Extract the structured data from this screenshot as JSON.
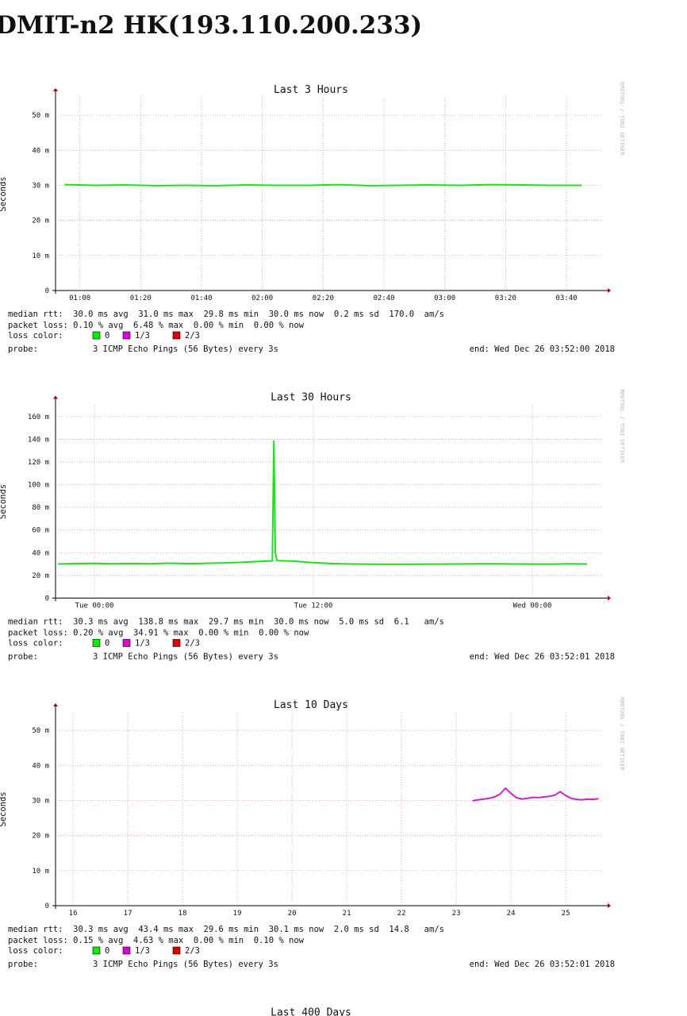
{
  "header": {
    "title": "DMIT-n2 HK(193.110.200.233)"
  },
  "chart_data": [
    {
      "type": "line",
      "title": "Last 3 Hours",
      "ylabel": "Seconds",
      "watermark": "RRDTOOL / TOBI OETIKER",
      "color": "#22dd22",
      "grid": true,
      "xlim": [
        "00:52",
        "03:52"
      ],
      "xticks": [
        "01:00",
        "01:20",
        "01:40",
        "02:00",
        "02:20",
        "02:40",
        "03:00",
        "03:20",
        "03:40"
      ],
      "ylim": [
        0,
        55
      ],
      "yticks": [
        0,
        {
          "value": 10,
          "label": "10 m"
        },
        {
          "value": 20,
          "label": "20 m"
        },
        {
          "value": 30,
          "label": "30 m"
        },
        {
          "value": 40,
          "label": "40 m"
        },
        {
          "value": 50,
          "label": "50 m"
        }
      ],
      "x": [
        "00:55",
        "01:05",
        "01:15",
        "01:25",
        "01:35",
        "01:45",
        "01:55",
        "02:05",
        "02:15",
        "02:25",
        "02:35",
        "02:45",
        "02:55",
        "03:05",
        "03:15",
        "03:25",
        "03:35",
        "03:45"
      ],
      "values": [
        30.2,
        30.0,
        30.1,
        29.9,
        30.0,
        29.9,
        30.1,
        30.0,
        30.0,
        30.2,
        29.9,
        30.0,
        30.1,
        30.0,
        30.2,
        30.1,
        30.0,
        30.0
      ],
      "stats": [
        "median rtt:  30.0 ms avg  31.0 ms max  29.8 ms min  30.0 ms now  0.2 ms sd  170.0  am/s",
        "packet loss: 0.10 % avg  6.48 % max  0.00 % min  0.00 % now"
      ],
      "loss_label": "loss color:",
      "loss_colors": [
        {
          "name": "0",
          "color": "#00ee00"
        },
        {
          "name": "1/3",
          "color": "#dd00dd"
        },
        {
          "name": "2/3",
          "color": "#dd0000"
        }
      ],
      "probe_label": "probe:",
      "probe": "3 ICMP Echo Pings (56 Bytes) every 3s",
      "end": "end: Wed Dec 26 03:52:00 2018"
    },
    {
      "type": "line",
      "title": "Last 30 Hours",
      "ylabel": "Seconds",
      "watermark": "RRDTOOL / TOBI OETIKER",
      "color": "#22dd22",
      "grid": true,
      "xlim": [
        "Mon 21:52",
        "Wed 03:52"
      ],
      "xticks": [
        "Tue 00:00",
        "Tue 12:00",
        "Wed 00:00"
      ],
      "ylim": [
        0,
        170
      ],
      "yticks": [
        0,
        {
          "value": 20,
          "label": "20 m"
        },
        {
          "value": 40,
          "label": "40 m"
        },
        {
          "value": 60,
          "label": "60 m"
        },
        {
          "value": 80,
          "label": "80 m"
        },
        {
          "value": 100,
          "label": "100 m"
        },
        {
          "value": 120,
          "label": "120 m"
        },
        {
          "value": 140,
          "label": "140 m"
        },
        {
          "value": 160,
          "label": "160 m"
        }
      ],
      "x": [
        "Mon 22:00",
        "Mon 23:00",
        "Tue 00:00",
        "Tue 01:00",
        "Tue 02:00",
        "Tue 03:00",
        "Tue 04:00",
        "Tue 05:00",
        "Tue 06:00",
        "Tue 07:00",
        "Tue 08:00",
        "Tue 09:00",
        "Tue 09:45",
        "Tue 09:50",
        "Tue 09:55",
        "Tue 10:00",
        "Tue 11:00",
        "Tue 12:00",
        "Tue 13:00",
        "Tue 14:00",
        "Tue 15:00",
        "Tue 16:00",
        "Tue 17:00",
        "Tue 18:00",
        "Tue 19:00",
        "Tue 20:00",
        "Tue 21:00",
        "Tue 22:00",
        "Tue 23:00",
        "Wed 00:00",
        "Wed 01:00",
        "Wed 02:00",
        "Wed 03:00"
      ],
      "values": [
        30.1,
        30.4,
        30.6,
        30.2,
        30.5,
        30.3,
        30.8,
        30.4,
        30.6,
        31.0,
        31.5,
        32.4,
        32.8,
        138.8,
        40.0,
        33.1,
        32.5,
        31.2,
        30.4,
        30.1,
        29.9,
        29.8,
        29.8,
        29.9,
        30.0,
        30.1,
        30.2,
        30.3,
        30.1,
        30.0,
        29.9,
        30.2,
        30.0
      ],
      "stats": [
        "median rtt:  30.3 ms avg  138.8 ms max  29.7 ms min  30.0 ms now  5.0 ms sd  6.1   am/s",
        "packet loss: 0.20 % avg  34.91 % max  0.00 % min  0.00 % now"
      ],
      "loss_label": "loss color:",
      "loss_colors": [
        {
          "name": "0",
          "color": "#00ee00"
        },
        {
          "name": "1/3",
          "color": "#dd00dd"
        },
        {
          "name": "2/3",
          "color": "#dd0000"
        }
      ],
      "probe_label": "probe:",
      "probe": "3 ICMP Echo Pings (56 Bytes) every 3s",
      "end": "end: Wed Dec 26 03:52:01 2018"
    },
    {
      "type": "line",
      "title": "Last 10 Days",
      "ylabel": "Seconds",
      "watermark": "RRDTOOL / TOBI OETIKER",
      "color": "#cc22cc",
      "grid": true,
      "xlim": [
        15.68,
        25.68
      ],
      "xticks": [
        16,
        17,
        18,
        19,
        20,
        21,
        22,
        23,
        24,
        25
      ],
      "ylim": [
        0,
        55
      ],
      "yticks": [
        0,
        {
          "value": 10,
          "label": "10 m"
        },
        {
          "value": 20,
          "label": "20 m"
        },
        {
          "value": 30,
          "label": "30 m"
        },
        {
          "value": 40,
          "label": "40 m"
        },
        {
          "value": 50,
          "label": "50 m"
        }
      ],
      "x": [
        23.3,
        23.4,
        23.5,
        23.6,
        23.7,
        23.8,
        23.9,
        24.0,
        24.1,
        24.2,
        24.3,
        24.4,
        24.5,
        24.6,
        24.7,
        24.8,
        24.9,
        25.0,
        25.1,
        25.2,
        25.3,
        25.4,
        25.5,
        25.6
      ],
      "values": [
        29.9,
        30.2,
        30.4,
        30.6,
        31.0,
        31.8,
        33.5,
        32.0,
        30.8,
        30.4,
        30.6,
        30.9,
        30.8,
        31.0,
        31.2,
        31.5,
        32.5,
        31.4,
        30.6,
        30.3,
        30.2,
        30.4,
        30.3,
        30.5
      ],
      "stats": [
        "median rtt:  30.3 ms avg  43.4 ms max  29.6 ms min  30.1 ms now  2.0 ms sd  14.8   am/s",
        "packet loss: 0.15 % avg  4.63 % max  0.00 % min  0.10 % now"
      ],
      "loss_label": "loss color:",
      "loss_colors": [
        {
          "name": "0",
          "color": "#00ee00"
        },
        {
          "name": "1/3",
          "color": "#dd00dd"
        },
        {
          "name": "2/3",
          "color": "#dd0000"
        }
      ],
      "probe_label": "probe:",
      "probe": "3 ICMP Echo Pings (56 Bytes) every 3s",
      "end": "end: Wed Dec 26 03:52:01 2018"
    },
    {
      "type": "line",
      "title": "Last 400 Days"
    }
  ]
}
